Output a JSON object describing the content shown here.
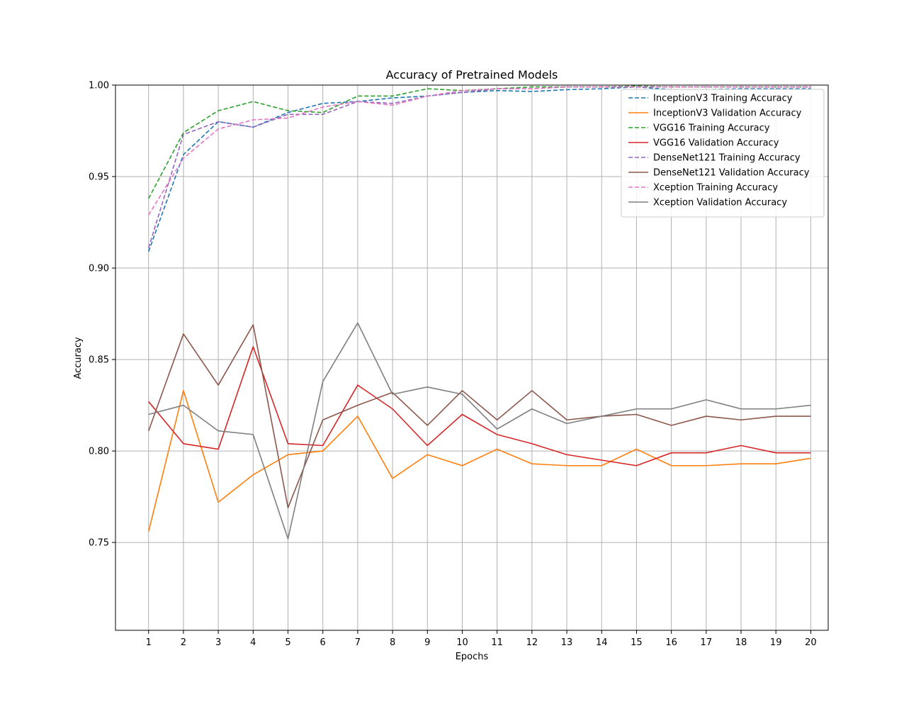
{
  "chart_data": {
    "type": "line",
    "title": "Accuracy of Pretrained Models",
    "xlabel": "Epochs",
    "ylabel": "Accuracy",
    "x": [
      1,
      2,
      3,
      4,
      5,
      6,
      7,
      8,
      9,
      10,
      11,
      12,
      13,
      14,
      15,
      16,
      17,
      18,
      19,
      20
    ],
    "xlim": [
      0.05,
      20.5
    ],
    "ylim": [
      0.702,
      1.0
    ],
    "yticks": [
      0.75,
      0.8,
      0.85,
      0.9,
      0.95,
      1.0
    ],
    "ytick_labels": [
      "0.75",
      "0.80",
      "0.85",
      "0.90",
      "0.95",
      "1.00"
    ],
    "grid": true,
    "legend_position": "top-right",
    "series": [
      {
        "name": "InceptionV3 Training Accuracy",
        "color": "#1f77b4",
        "dashed": true,
        "values": [
          0.909,
          0.962,
          0.98,
          0.977,
          0.985,
          0.99,
          0.991,
          0.993,
          0.994,
          0.996,
          0.997,
          0.9965,
          0.9975,
          0.998,
          0.999,
          0.9975,
          0.9975,
          0.998,
          0.998,
          0.998
        ]
      },
      {
        "name": "InceptionV3 Validation Accuracy",
        "color": "#ff7f0e",
        "dashed": false,
        "values": [
          0.756,
          0.833,
          0.772,
          0.787,
          0.798,
          0.8,
          0.819,
          0.785,
          0.798,
          0.792,
          0.801,
          0.793,
          0.792,
          0.792,
          0.801,
          0.792,
          0.792,
          0.793,
          0.793,
          0.796
        ]
      },
      {
        "name": "VGG16 Training Accuracy",
        "color": "#2ca02c",
        "dashed": true,
        "values": [
          0.938,
          0.974,
          0.986,
          0.991,
          0.986,
          0.985,
          0.994,
          0.994,
          0.998,
          0.997,
          0.998,
          0.999,
          0.999,
          0.999,
          0.9995,
          0.999,
          0.999,
          0.999,
          0.999,
          0.999
        ]
      },
      {
        "name": "VGG16 Validation Accuracy",
        "color": "#d62728",
        "dashed": false,
        "values": [
          0.827,
          0.804,
          0.801,
          0.857,
          0.804,
          0.803,
          0.836,
          0.823,
          0.803,
          0.82,
          0.809,
          0.804,
          0.798,
          0.795,
          0.792,
          0.799,
          0.799,
          0.803,
          0.799,
          0.799
        ]
      },
      {
        "name": "DenseNet121 Training Accuracy",
        "color": "#9467bd",
        "dashed": true,
        "values": [
          0.911,
          0.973,
          0.98,
          0.977,
          0.984,
          0.984,
          0.991,
          0.99,
          0.994,
          0.996,
          0.998,
          0.998,
          0.999,
          0.999,
          0.999,
          0.999,
          0.999,
          0.999,
          0.999,
          0.999
        ]
      },
      {
        "name": "DenseNet121 Validation Accuracy",
        "color": "#8c564b",
        "dashed": false,
        "values": [
          0.811,
          0.864,
          0.836,
          0.869,
          0.769,
          0.817,
          0.825,
          0.832,
          0.814,
          0.833,
          0.817,
          0.833,
          0.817,
          0.819,
          0.82,
          0.814,
          0.819,
          0.817,
          0.819,
          0.819
        ]
      },
      {
        "name": "Xception Training Accuracy",
        "color": "#e377c2",
        "dashed": true,
        "values": [
          0.929,
          0.96,
          0.976,
          0.981,
          0.982,
          0.988,
          0.991,
          0.989,
          0.994,
          0.997,
          0.998,
          0.998,
          0.999,
          0.999,
          0.999,
          0.999,
          0.999,
          0.999,
          0.999,
          0.999
        ]
      },
      {
        "name": "Xception Validation Accuracy",
        "color": "#7f7f7f",
        "dashed": false,
        "values": [
          0.82,
          0.825,
          0.811,
          0.809,
          0.752,
          0.838,
          0.87,
          0.831,
          0.835,
          0.831,
          0.812,
          0.823,
          0.815,
          0.819,
          0.823,
          0.823,
          0.828,
          0.823,
          0.823,
          0.825
        ]
      }
    ]
  }
}
